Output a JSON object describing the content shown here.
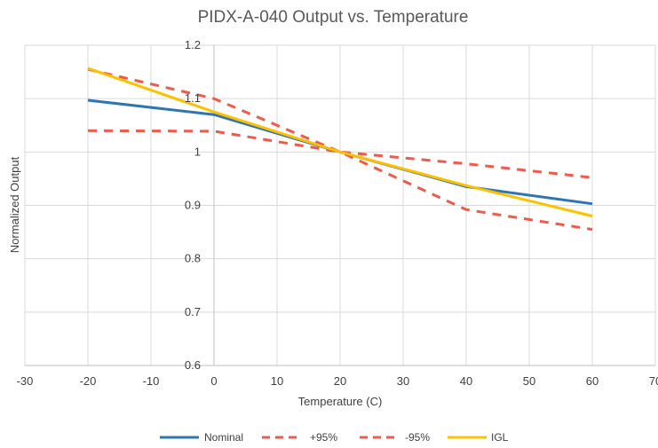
{
  "chart_data": {
    "type": "line",
    "title": "PIDX-A-040 Output vs. Temperature",
    "xlabel": "Temperature (C)",
    "ylabel": "Normalized Output",
    "xlim": [
      -30,
      70
    ],
    "ylim": [
      0.6,
      1.2
    ],
    "x_ticks": [
      -30,
      -20,
      -10,
      0,
      10,
      20,
      30,
      40,
      50,
      60,
      70
    ],
    "y_ticks": [
      0.6,
      0.7,
      0.8,
      0.9,
      1.0,
      1.1,
      1.2
    ],
    "x_tick_labels": [
      "-30",
      "-20",
      "-10",
      "0",
      "10",
      "20",
      "30",
      "40",
      "50",
      "60",
      "70"
    ],
    "y_tick_labels": [
      "0.6",
      "0.7",
      "0.8",
      "0.9",
      "1",
      "1.1",
      "1.2"
    ],
    "grid": true,
    "legend_position": "bottom",
    "series": [
      {
        "name": "Nominal",
        "color": "#2e75b6",
        "dash": "solid",
        "x": [
          -20,
          0,
          20,
          40,
          60
        ],
        "values": [
          1.097,
          1.07,
          1.0,
          0.935,
          0.903
        ]
      },
      {
        "name": "+95%",
        "color": "#f05a4a",
        "dash": "dashed",
        "x": [
          -20,
          0,
          20,
          40,
          60
        ],
        "values": [
          1.155,
          1.1,
          1.0,
          0.892,
          0.855
        ]
      },
      {
        "name": "-95%",
        "color": "#f05a4a",
        "dash": "dashed",
        "x": [
          -20,
          0,
          20,
          40,
          60
        ],
        "values": [
          1.04,
          1.039,
          1.0,
          0.978,
          0.952
        ]
      },
      {
        "name": "IGL",
        "color": "#ffc000",
        "dash": "solid",
        "x": [
          -20,
          0,
          20,
          40,
          60
        ],
        "values": [
          1.157,
          1.075,
          1.0,
          0.937,
          0.88
        ]
      }
    ]
  }
}
